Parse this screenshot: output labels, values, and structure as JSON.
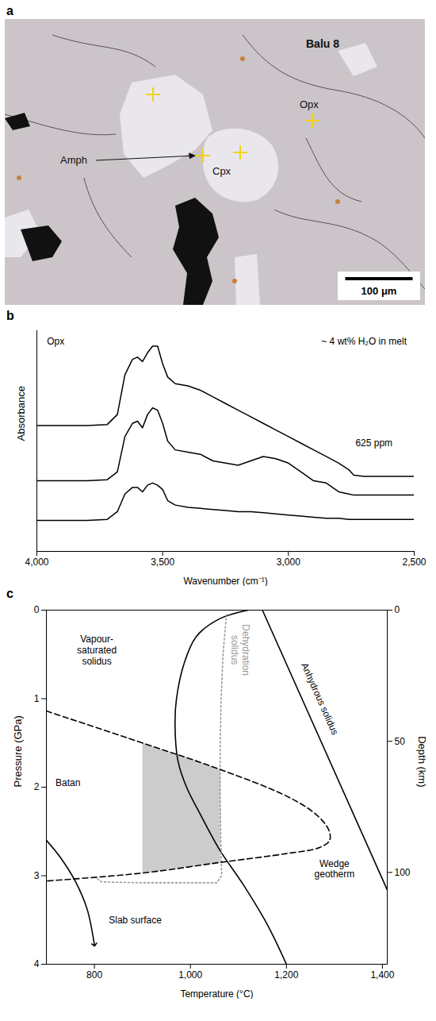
{
  "chart_data": [
    {
      "type": "image",
      "letter": "a",
      "labels": [
        "Balu 8",
        "Opx",
        "Amph",
        "Cpx"
      ],
      "scale_bar": {
        "value": 100,
        "label": "100 μm"
      }
    },
    {
      "type": "line",
      "letter": "b",
      "x_label": "Wavenumber (cm⁻¹)",
      "y_label": "Absorbance",
      "x": [
        4000,
        3800,
        3720,
        3680,
        3650,
        3620,
        3600,
        3580,
        3560,
        3540,
        3520,
        3500,
        3480,
        3450,
        3400,
        3350,
        3300,
        3250,
        3200,
        3150,
        3100,
        3050,
        3000,
        2950,
        2900,
        2850,
        2800,
        2760,
        2740,
        2700,
        2600,
        2500
      ],
      "series": [
        {
          "color": "#000000",
          "values": [
            5.7,
            5.7,
            5.75,
            6.2,
            8.0,
            8.7,
            8.8,
            8.6,
            9.0,
            9.3,
            9.3,
            8.5,
            7.9,
            7.6,
            7.5,
            7.3,
            7.0,
            6.7,
            6.4,
            6.1,
            5.8,
            5.5,
            5.2,
            4.9,
            4.6,
            4.3,
            4.0,
            3.7,
            3.45,
            3.4,
            3.4,
            3.4
          ]
        },
        {
          "color": "#000000",
          "values": [
            3.2,
            3.2,
            3.25,
            3.6,
            5.2,
            5.8,
            5.9,
            5.6,
            6.2,
            6.5,
            6.4,
            5.8,
            5.0,
            4.6,
            4.5,
            4.4,
            4.1,
            4.0,
            3.9,
            4.1,
            4.3,
            4.2,
            4.0,
            3.6,
            3.2,
            3.1,
            2.7,
            2.6,
            2.55,
            2.55,
            2.55,
            2.55
          ]
        },
        {
          "color": "#000000",
          "values": [
            1.4,
            1.4,
            1.45,
            1.8,
            2.6,
            2.9,
            2.9,
            2.7,
            3.0,
            3.1,
            3.0,
            2.8,
            2.3,
            2.1,
            2.0,
            1.95,
            1.9,
            1.85,
            1.8,
            1.8,
            1.75,
            1.7,
            1.65,
            1.6,
            1.55,
            1.5,
            1.5,
            1.45,
            1.45,
            1.45,
            1.45,
            1.45
          ]
        }
      ],
      "xlim": [
        4000,
        2500
      ],
      "xticks": [
        {
          "value": 4000,
          "label": "4,000"
        },
        {
          "value": 3500,
          "label": "3,500"
        },
        {
          "value": 3000,
          "label": "3,000"
        },
        {
          "value": 2500,
          "label": "2,500"
        }
      ],
      "ylim": [
        0,
        10
      ],
      "yticks": [],
      "tick_labels": "x",
      "annotations": [
        {
          "text": "Opx",
          "x": 3960,
          "y": 9.5
        },
        {
          "text": "~ 4 wt% H₂O in melt",
          "x": 2530,
          "y": 9.5
        },
        {
          "text": "625 ppm",
          "x": 2660,
          "y": 4.9
        }
      ]
    },
    {
      "type": "line",
      "letter": "c",
      "x_label": "Temperature (°C)",
      "y_label": "Pressure (GPa)",
      "y2_label": "Depth (km)",
      "xlim": [
        700,
        1410
      ],
      "xticks": [
        800,
        {
          "value": 1000,
          "label": "1,000"
        },
        {
          "value": 1200,
          "label": "1,200"
        },
        {
          "value": 1400,
          "label": "1,400"
        }
      ],
      "ylim": [
        4,
        0
      ],
      "yticks": [
        0,
        1,
        2,
        3,
        4
      ],
      "y2lim": [
        135,
        0
      ],
      "y2ticks": [
        0,
        50,
        100
      ],
      "series": [
        {
          "type": "area",
          "color": "#cccccc",
          "x": [
            900,
            1062,
            1062,
            900
          ],
          "values": [
            1.5,
            1.8,
            2.85,
            2.97
          ]
        },
        {
          "type": "line",
          "line_style": "solid",
          "color": "#000000",
          "x": [
            1150,
            1410
          ],
          "values": [
            0,
            3.16
          ]
        },
        {
          "type": "line",
          "line_style": "solid",
          "color": "#000000",
          "x": [
            1120,
            1060,
            1012,
            987,
            971,
            968,
            974,
            992,
            1020,
            1060,
            1110,
            1160,
            1200
          ],
          "values": [
            0,
            0.1,
            0.3,
            0.6,
            1.0,
            1.3,
            1.7,
            2.0,
            2.3,
            2.7,
            3.1,
            3.55,
            4.0
          ]
        },
        {
          "type": "line",
          "line_style": "dotted",
          "color": "#999999",
          "x": [
            1075,
            1068,
            1064,
            1062,
            1062,
            1063,
            1065,
            1055,
            900,
            815,
            805
          ],
          "values": [
            0.05,
            0.5,
            1.0,
            1.5,
            2.0,
            2.5,
            3.0,
            3.08,
            3.08,
            3.07,
            3.03
          ]
        },
        {
          "type": "line",
          "line_style": "dashed",
          "color": "#000000",
          "x": [
            700,
            900,
            1062,
            1200,
            1260,
            1288,
            1290,
            1270,
            1200,
            1062,
            900,
            700
          ],
          "values": [
            1.14,
            1.5,
            1.8,
            2.1,
            2.3,
            2.48,
            2.6,
            2.68,
            2.75,
            2.85,
            2.97,
            3.06
          ]
        },
        {
          "type": "line",
          "line_style": "solid",
          "marker": "arrow",
          "color": "#000000",
          "x": [
            700,
            730,
            760,
            785,
            800
          ],
          "values": [
            2.6,
            2.8,
            3.06,
            3.38,
            3.78
          ]
        }
      ],
      "annotations": [
        {
          "text": "Vapour-saturated solidus",
          "x": 805,
          "y": 0.45
        },
        {
          "text": "Dehydration solidus",
          "x": 1105,
          "y": 0.45
        },
        {
          "text": "Anhydrous solidus",
          "x": 1270,
          "y": 1.0
        },
        {
          "text": "Batan",
          "x": 745,
          "y": 1.95
        },
        {
          "text": "Wedge geotherm",
          "x": 1300,
          "y": 2.92
        },
        {
          "text": "Slab surface",
          "x": 830,
          "y": 3.5
        }
      ]
    }
  ]
}
